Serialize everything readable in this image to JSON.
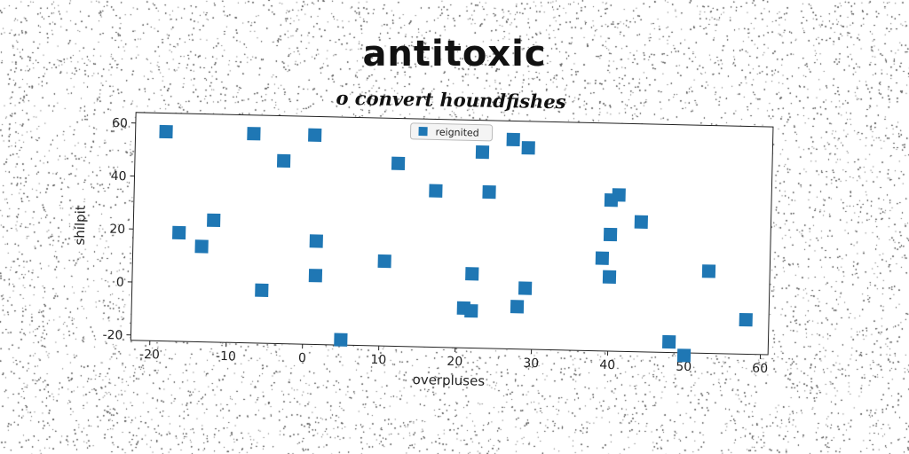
{
  "chart_data": {
    "type": "scatter",
    "title": "antitoxic",
    "subtitle": "o convert houndfishes",
    "xlabel": "overpluses",
    "ylabel": "shilpit",
    "xlim": [
      -22.5,
      61
    ],
    "ylim": [
      -22,
      64
    ],
    "xticks": [
      -20,
      -10,
      0,
      10,
      20,
      30,
      40,
      50,
      60
    ],
    "yticks": [
      -20,
      0,
      20,
      40,
      60
    ],
    "legend": "top-center",
    "marker_color": "#1f77b4",
    "series": [
      {
        "name": "reignited",
        "points": [
          {
            "x": -18.5,
            "y": 57
          },
          {
            "x": -7,
            "y": 57
          },
          {
            "x": 1,
            "y": 57
          },
          {
            "x": 27,
            "y": 57
          },
          {
            "x": 29,
            "y": 54
          },
          {
            "x": 23,
            "y": 52
          },
          {
            "x": -3,
            "y": 47
          },
          {
            "x": 12,
            "y": 47
          },
          {
            "x": 17,
            "y": 37
          },
          {
            "x": 24,
            "y": 37
          },
          {
            "x": 41,
            "y": 37
          },
          {
            "x": 40,
            "y": 35
          },
          {
            "x": 44,
            "y": 27
          },
          {
            "x": -12,
            "y": 24
          },
          {
            "x": 40,
            "y": 22
          },
          {
            "x": -16.5,
            "y": 19
          },
          {
            "x": 1.5,
            "y": 17
          },
          {
            "x": -13.5,
            "y": 14
          },
          {
            "x": 39,
            "y": 13
          },
          {
            "x": 10.5,
            "y": 10
          },
          {
            "x": 53,
            "y": 9
          },
          {
            "x": 40,
            "y": 6
          },
          {
            "x": 22,
            "y": 6
          },
          {
            "x": 1.5,
            "y": 4
          },
          {
            "x": 29,
            "y": 1
          },
          {
            "x": -5.5,
            "y": -2
          },
          {
            "x": 28,
            "y": -6
          },
          {
            "x": 21,
            "y": -7
          },
          {
            "x": 22,
            "y": -8
          },
          {
            "x": 58,
            "y": -9
          },
          {
            "x": 48,
            "y": -18
          },
          {
            "x": 5,
            "y": -20
          },
          {
            "x": 50,
            "y": -23
          }
        ]
      }
    ]
  }
}
